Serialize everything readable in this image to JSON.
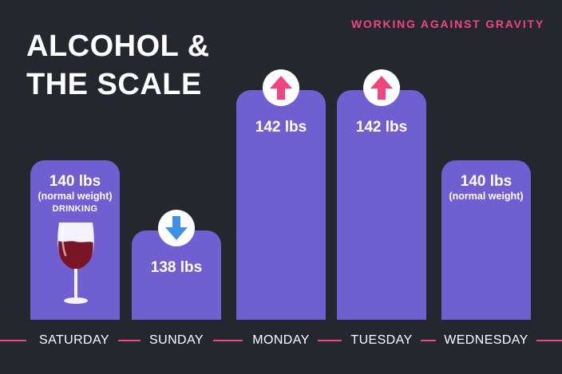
{
  "title": {
    "line1": "ALCOHOL &",
    "line2": "THE SCALE"
  },
  "brand": "WORKING AGAINST GRAVITY",
  "colors": {
    "background": "#25272e",
    "bar": "#6f5fd1",
    "accent": "#f0467c",
    "down_arrow": "#3f8fe6",
    "up_arrow": "#f0467c"
  },
  "chart_data": {
    "type": "bar",
    "categories": [
      "SATURDAY",
      "SUNDAY",
      "MONDAY",
      "TUESDAY",
      "WEDNESDAY"
    ],
    "values": [
      140,
      138,
      142,
      142,
      140
    ],
    "unit": "lbs",
    "value_labels": [
      "140 lbs",
      "138 lbs",
      "142 lbs",
      "142 lbs",
      "140 lbs"
    ],
    "notes": [
      "(normal weight)",
      "",
      "",
      "",
      "(normal weight)"
    ],
    "markers": [
      "wine-glass",
      "down-arrow",
      "up-arrow",
      "up-arrow",
      ""
    ],
    "marker_text": "DRINKING",
    "xlabel": "",
    "ylabel": "",
    "grid": false
  }
}
